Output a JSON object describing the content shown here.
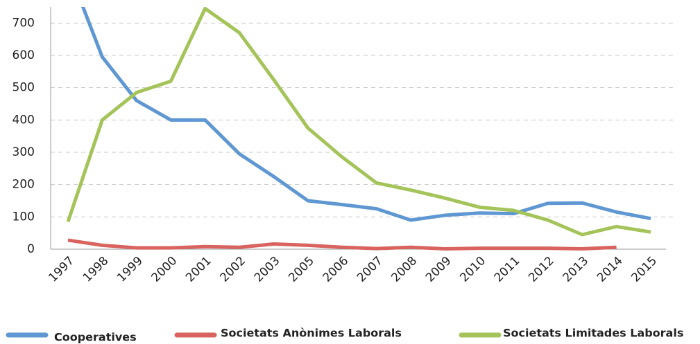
{
  "chart_data": {
    "type": "line",
    "categories": [
      "1997",
      "1998",
      "1999",
      "2000",
      "2001",
      "2002",
      "2003",
      "2005",
      "2006",
      "2007",
      "2008",
      "2009",
      "2010",
      "2011",
      "2012",
      "2013",
      "2014",
      "2015"
    ],
    "series": [
      {
        "name": "Cooperatives",
        "color": "#5f97d2",
        "values": [
          870,
          595,
          460,
          400,
          400,
          295,
          225,
          150,
          138,
          125,
          90,
          105,
          112,
          110,
          142,
          143,
          115,
          95
        ]
      },
      {
        "name": "Societats Anònimes Laborals",
        "color": "#d9635f",
        "values": [
          28,
          12,
          4,
          4,
          8,
          6,
          16,
          12,
          6,
          2,
          6,
          1,
          3,
          3,
          3,
          1,
          6,
          null
        ]
      },
      {
        "name": "Societats Limitades Laborals",
        "color": "#a4c45a",
        "values": [
          85,
          400,
          485,
          520,
          745,
          670,
          525,
          375,
          285,
          205,
          183,
          158,
          130,
          120,
          90,
          45,
          70,
          53
        ]
      }
    ],
    "ylim": [
      0,
      750
    ],
    "yticks": [
      0,
      100,
      200,
      300,
      400,
      500,
      600,
      700
    ],
    "grid": true
  }
}
